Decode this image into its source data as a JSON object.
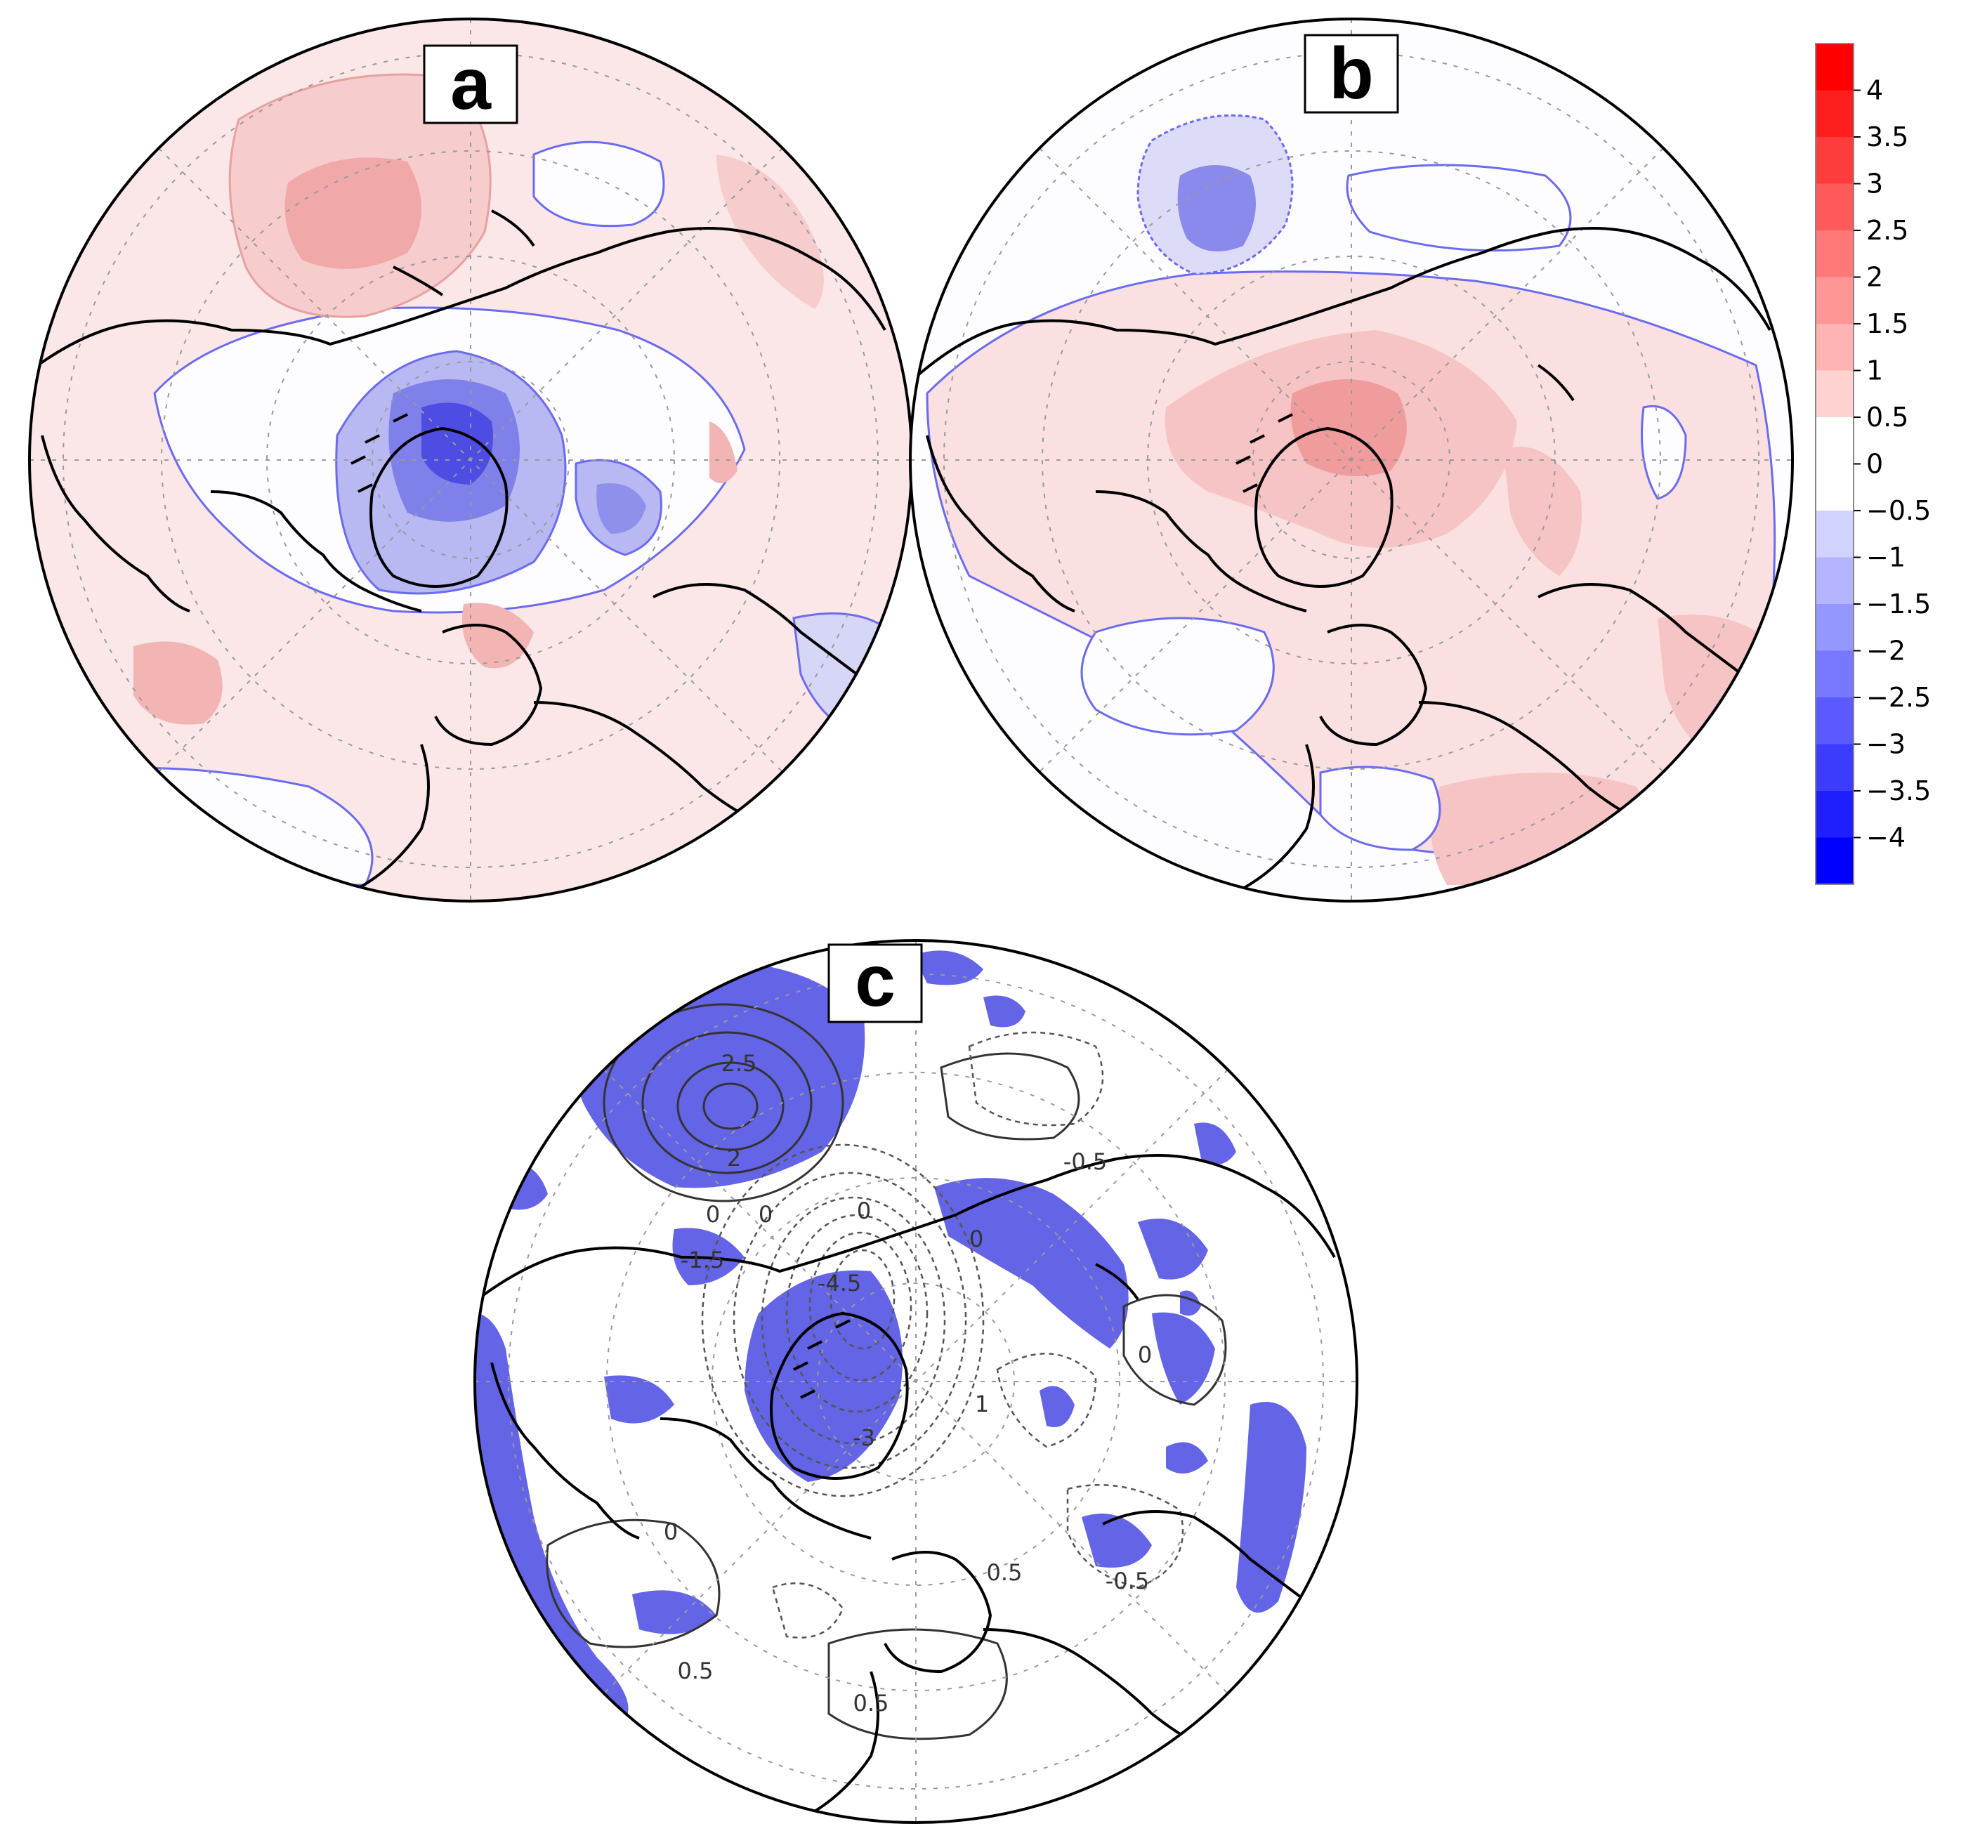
{
  "panels": [
    {
      "label": "a"
    },
    {
      "label": "b"
    },
    {
      "label": "c"
    }
  ],
  "colorbar": {
    "ticks": [
      "4",
      "3.5",
      "3",
      "2.5",
      "2",
      "1.5",
      "1",
      "0.5",
      "0",
      "−0.5",
      "−1",
      "−1.5",
      "−2",
      "−2.5",
      "−3",
      "−3.5",
      "−4"
    ],
    "top_color": "#ff0000",
    "zero_color": "#ffffff",
    "bottom_color": "#0000ff"
  },
  "panel_c_contour_labels": [
    "2.5",
    "2",
    "0",
    "0",
    "0",
    "-1.5",
    "-4.5",
    "-3",
    "1",
    "0",
    "-0.5",
    "0",
    "0",
    "-0.5",
    "0.5",
    "0.5",
    "0.5"
  ],
  "colors": {
    "positive_fill": "#f8d0d0",
    "positive_strong": "#f39c9c",
    "negative_fill": "#d6d6f7",
    "negative_strong": "#5a5ae6",
    "significance_fill": "#6464e6",
    "contour_blue": "#6b6bf0",
    "coastline": "#000000",
    "graticule": "#9a9a9a"
  }
}
